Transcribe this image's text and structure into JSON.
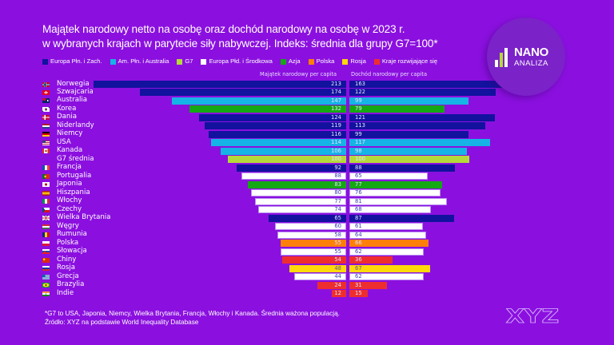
{
  "title": {
    "line1": "Majątek narodowy netto na osobę oraz dochód narodowy na osobę w 2023 r.",
    "line2": "w wybranych krajach w parytecie siły nabywczej. Indeks: średnia dla grupy G7=100*"
  },
  "legend": [
    {
      "label": "Europa Płn. i Zach.",
      "color": "#12129E"
    },
    {
      "label": "Am. Płn. i Australia",
      "color": "#16B3E6"
    },
    {
      "label": "G7",
      "color": "#B5D93A"
    },
    {
      "label": "Europa Płd. i Środkowa",
      "color": "#FFFFFF"
    },
    {
      "label": "Azja",
      "color": "#14A814"
    },
    {
      "label": "Polska",
      "color": "#FF7F0A"
    },
    {
      "label": "Rosja",
      "color": "#FFD80A"
    },
    {
      "label": "Kraje rozwijające się",
      "color": "#EE2E2E"
    }
  ],
  "logo": {
    "top": "NANO",
    "bottom": "ANALIZA"
  },
  "footer": {
    "note": "*G7 to USA, Japonia, Niemcy, Wielka Brytania, Francja, Włochy i Kanada. Średnia ważona populacją.",
    "source": "Źródło: XYZ na podstawie World Inequality Database"
  },
  "brand": "XYZ",
  "chart_data": {
    "type": "bar",
    "orientation": "horizontal",
    "layout": "diverging back-to-back",
    "title": "Majątek narodowy netto na osobę oraz dochód narodowy na osobę w 2023 r. w wybranych krajach w parytecie siły nabywczej. Indeks: średnia dla grupy G7=100*",
    "index_base": "G7 = 100",
    "categories": [
      "Norwegia",
      "Szwajcaria",
      "Australia",
      "Korea",
      "Dania",
      "Niderlandy",
      "Niemcy",
      "USA",
      "Kanada",
      "G7 średnia",
      "Francja",
      "Portugalia",
      "Japonia",
      "Hiszpania",
      "Włochy",
      "Czechy",
      "Wielka Brytania",
      "Węgry",
      "Rumunia",
      "Polska",
      "Słowacja",
      "Chiny",
      "Rosja",
      "Grecja",
      "Brazylia",
      "Indie"
    ],
    "flags": [
      "flag-norway",
      "flag-switzerland",
      "flag-australia",
      "flag-korea",
      "flag-denmark",
      "flag-netherlands",
      "flag-germany",
      "flag-usa",
      "flag-canada",
      null,
      "flag-france",
      "flag-portugal",
      "flag-japan",
      "flag-spain",
      "flag-italy",
      "flag-czechia",
      "flag-uk",
      "flag-hungary",
      "flag-romania",
      "flag-poland",
      "flag-slovakia",
      "flag-china",
      "flag-russia",
      "flag-greece",
      "flag-brazil",
      "flag-india"
    ],
    "groups": [
      "Europa Płn. i Zach.",
      "Europa Płn. i Zach.",
      "Am. Płn. i Australia",
      "Azja",
      "Europa Płn. i Zach.",
      "Europa Płn. i Zach.",
      "Europa Płn. i Zach.",
      "Am. Płn. i Australia",
      "Am. Płn. i Australia",
      "G7",
      "Europa Płn. i Zach.",
      "Europa Płd. i Środkowa",
      "Azja",
      "Europa Płd. i Środkowa",
      "Europa Płd. i Środkowa",
      "Europa Płd. i Środkowa",
      "Europa Płn. i Zach.",
      "Europa Płd. i Środkowa",
      "Europa Płd. i Środkowa",
      "Polska",
      "Europa Płd. i Środkowa",
      "Kraje rozwijające się",
      "Rosja",
      "Europa Płd. i Środkowa",
      "Kraje rozwijające się",
      "Kraje rozwijające się"
    ],
    "series": [
      {
        "name": "Majątek narodowy per capita",
        "side": "left",
        "values": [
          213,
          174,
          147,
          132,
          124,
          119,
          116,
          114,
          106,
          100,
          92,
          88,
          83,
          80,
          77,
          74,
          65,
          60,
          58,
          55,
          55,
          54,
          48,
          44,
          24,
          12
        ]
      },
      {
        "name": "Dochód narodowy per capita",
        "side": "right",
        "values": [
          163,
          122,
          99,
          79,
          121,
          113,
          99,
          117,
          98,
          100,
          88,
          65,
          77,
          76,
          81,
          68,
          87,
          61,
          64,
          66,
          62,
          36,
          67,
          62,
          31,
          15
        ]
      }
    ],
    "legend_position": "top",
    "grid": false
  }
}
